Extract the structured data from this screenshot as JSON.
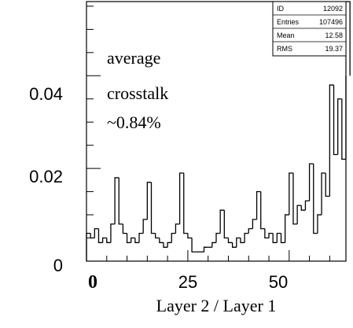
{
  "chart_data": {
    "type": "histogram",
    "title": "",
    "xlabel": "Layer 2 / Layer 1",
    "ylabel": "",
    "xlim": [
      0,
      64
    ],
    "ylim": [
      0,
      0.056
    ],
    "x_ticks": [
      "0",
      "25",
      "50"
    ],
    "y_ticks": [
      "0",
      "0.02",
      "0.04"
    ],
    "annotation": [
      "average",
      "crosstalk",
      "~0.84%"
    ],
    "stats_box": [
      {
        "label": "ID",
        "value": "12092"
      },
      {
        "label": "Entries",
        "value": "107496"
      },
      {
        "label": "Mean",
        "value": "12.58"
      },
      {
        "label": "RMS",
        "value": "19.37"
      }
    ],
    "bin_edges_start": 0,
    "bin_width": 1,
    "values": [
      0.006,
      0.005,
      0.007,
      0.004,
      0.005,
      0.004,
      0.008,
      0.018,
      0.008,
      0.006,
      0.004,
      0.005,
      0.004,
      0.006,
      0.009,
      0.017,
      0.006,
      0.005,
      0.004,
      0.003,
      0.004,
      0.006,
      0.008,
      0.019,
      0.006,
      0.005,
      0.002,
      0.002,
      0.002,
      0.003,
      0.003,
      0.004,
      0.006,
      0.011,
      0.005,
      0.004,
      0.003,
      0.005,
      0.004,
      0.006,
      0.007,
      0.009,
      0.015,
      0.007,
      0.005,
      0.006,
      0.004,
      0.006,
      0.004,
      0.01,
      0.019,
      0.008,
      0.012,
      0.011,
      0.013,
      0.021,
      0.006,
      0.01,
      0.019,
      0.014,
      0.038,
      0.023,
      0.035,
      0.022,
      0.04,
      0.057
    ]
  }
}
